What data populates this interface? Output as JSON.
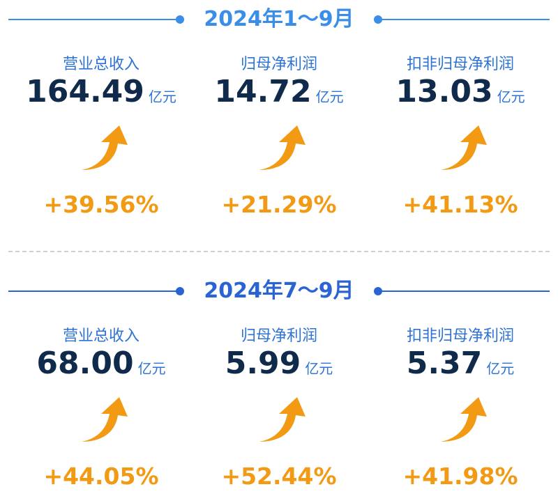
{
  "colors": {
    "accent_a": "#3b8ee8",
    "accent_b": "#2a64d4",
    "arrow": "#f29a14",
    "value": "#0f2a4a"
  },
  "periods": [
    {
      "title": "2024年1～9月",
      "metrics": [
        {
          "label": "营业总收入",
          "value": "164.49",
          "unit": "亿元",
          "change": "+39.56%",
          "icon": "trend-up-arrow-icon"
        },
        {
          "label": "归母净利润",
          "value": "14.72",
          "unit": "亿元",
          "change": "+21.29%",
          "icon": "trend-up-arrow-icon"
        },
        {
          "label": "扣非归母净利润",
          "value": "13.03",
          "unit": "亿元",
          "change": "+41.13%",
          "icon": "trend-up-arrow-icon"
        }
      ]
    },
    {
      "title": "2024年7～9月",
      "metrics": [
        {
          "label": "营业总收入",
          "value": "68.00",
          "unit": "亿元",
          "change": "+44.05%",
          "icon": "trend-up-arrow-icon"
        },
        {
          "label": "归母净利润",
          "value": "5.99",
          "unit": "亿元",
          "change": "+52.44%",
          "icon": "trend-up-arrow-icon"
        },
        {
          "label": "扣非归母净利润",
          "value": "5.37",
          "unit": "亿元",
          "change": "+41.98%",
          "icon": "trend-up-arrow-icon"
        }
      ]
    }
  ]
}
